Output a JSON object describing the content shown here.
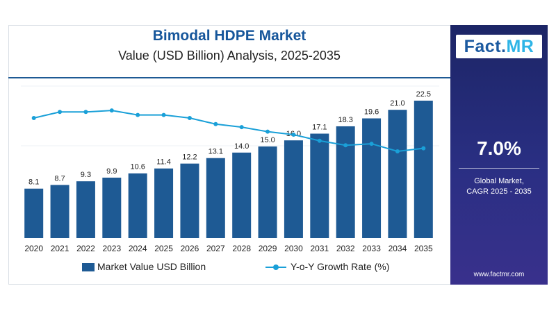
{
  "header": {
    "title": "Bimodal HDPE Market",
    "subtitle": "Value (USD Billion) Analysis, 2025-2035"
  },
  "sidebar": {
    "logo_fact": "Fact",
    "logo_dot": ".",
    "logo_mr": "MR",
    "cagr_value": "7.0%",
    "cagr_label_line1": "Global Market,",
    "cagr_label_line2": "CAGR 2025 - 2035",
    "website": "www.factmr.com"
  },
  "colors": {
    "bar": "#1e5a94",
    "line": "#1aa0d8",
    "title": "#16569b"
  },
  "chart_data": {
    "type": "bar",
    "categories": [
      "2020",
      "2021",
      "2022",
      "2023",
      "2024",
      "2025",
      "2026",
      "2027",
      "2028",
      "2029",
      "2030",
      "2031",
      "2032",
      "2033",
      "2034",
      "2035"
    ],
    "series": [
      {
        "name": "Market Value USD Billion",
        "type": "bar",
        "values": [
          8.1,
          8.7,
          9.3,
          9.9,
          10.6,
          11.4,
          12.2,
          13.1,
          14.0,
          15.0,
          16.0,
          17.1,
          18.3,
          19.6,
          21.0,
          22.5
        ],
        "labels": [
          "8.1",
          "8.7",
          "9.3",
          "9.9",
          "10.6",
          "11.4",
          "12.2",
          "13.1",
          "14.0",
          "15.0",
          "16.0",
          "17.1",
          "18.3",
          "19.6",
          "21.0",
          "22.5"
        ]
      },
      {
        "name": "Y-o-Y Growth Rate (%)",
        "type": "line",
        "values": [
          7.2,
          7.4,
          7.4,
          7.45,
          7.3,
          7.3,
          7.2,
          7.0,
          6.9,
          6.75,
          6.65,
          6.45,
          6.3,
          6.35,
          6.1,
          6.2
        ]
      }
    ],
    "legend": "bottom",
    "grid": true
  }
}
